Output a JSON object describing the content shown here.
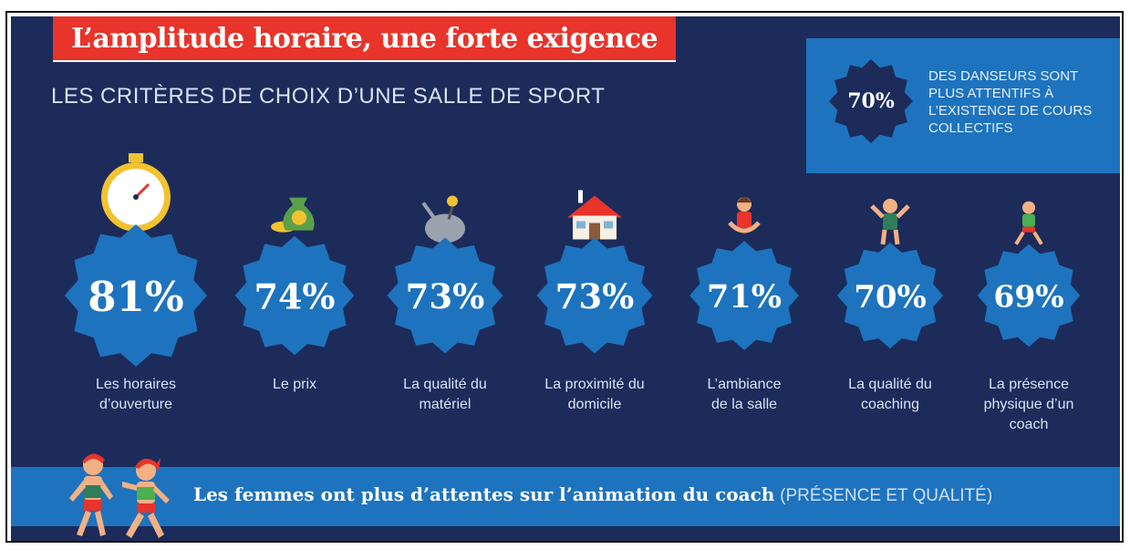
{
  "title": "L’amplitude horaire, une forte exigence",
  "subtitle": "LES CRITÈRES DE CHOIX D’UNE SALLE DE SPORT",
  "highlight": {
    "value": "70%",
    "text": "DES DANSEURS SONT PLUS ATTENTIFS À L’EXISTENCE DE COURS COLLECTIFS"
  },
  "footer": {
    "bold": "Les femmes ont plus d’attentes sur l’animation du coach",
    "light": "(PRÉSENCE ET QUALITÉ)"
  },
  "colors": {
    "background": "#1c2b5a",
    "accent_red": "#e8342a",
    "badge_blue": "#1e73be",
    "text_light": "#d9e2f3"
  },
  "chart_data": {
    "type": "bar",
    "unit": "%",
    "categories": [
      "Les horaires d’ouverture",
      "Le prix",
      "La qualité du matériel",
      "La proximité du domicile",
      "L’ambiance de la salle",
      "La qualité du coaching",
      "La présence physique d’un coach"
    ],
    "category_lines": [
      [
        "Les horaires",
        "d’ouverture"
      ],
      [
        "Le prix"
      ],
      [
        "La qualité du",
        "matériel"
      ],
      [
        "La proximité du",
        "domicile"
      ],
      [
        "L’ambiance",
        "de la salle"
      ],
      [
        "La qualité du",
        "coaching"
      ],
      [
        "La présence",
        "physique d’un",
        "coach"
      ]
    ],
    "values": [
      81,
      74,
      73,
      73,
      71,
      70,
      69
    ],
    "labels": [
      "81%",
      "74%",
      "73%",
      "73%",
      "71%",
      "70%",
      "69%"
    ],
    "icons": [
      "stopwatch-icon",
      "money-bag-icon",
      "dumbbell-icon",
      "house-icon",
      "dancer-icon",
      "coach-icon",
      "athlete-icon"
    ]
  }
}
